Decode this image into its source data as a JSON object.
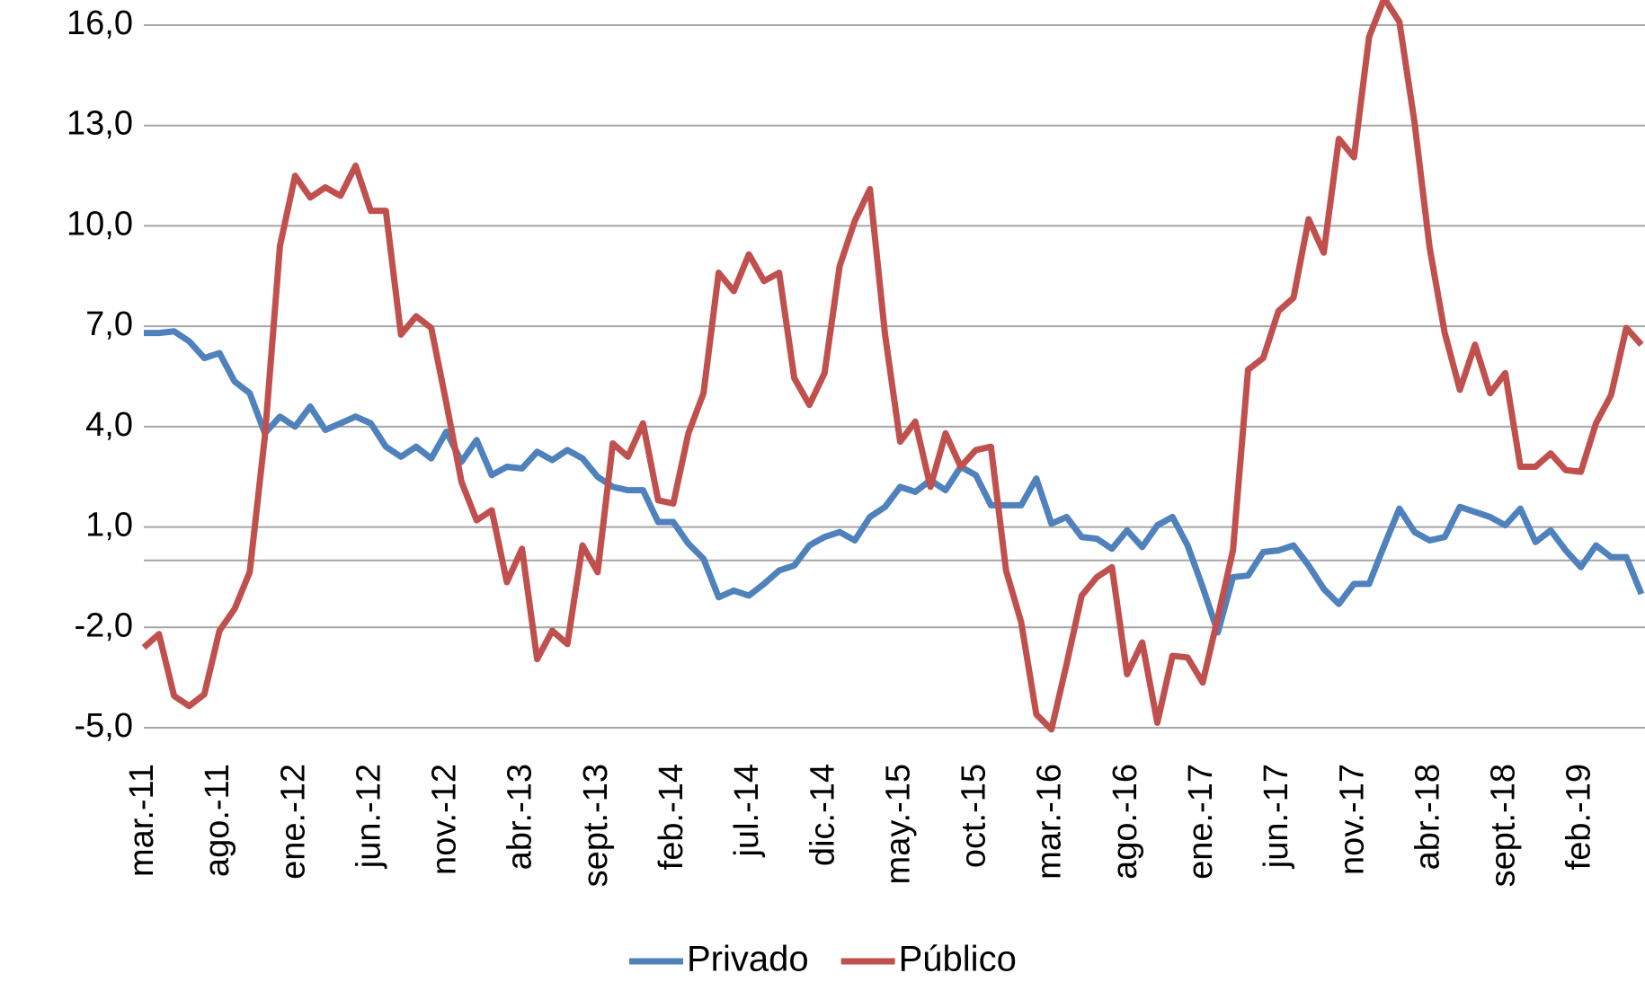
{
  "chart_data": {
    "type": "line",
    "categories": [
      "mar.-11",
      null,
      null,
      null,
      null,
      "ago.-11",
      null,
      null,
      null,
      null,
      "ene.-12",
      null,
      null,
      null,
      null,
      "jun.-12",
      null,
      null,
      null,
      null,
      "nov.-12",
      null,
      null,
      null,
      null,
      "abr.-13",
      null,
      null,
      null,
      null,
      "sept.-13",
      null,
      null,
      null,
      null,
      "feb.-14",
      null,
      null,
      null,
      null,
      "jul.-14",
      null,
      null,
      null,
      null,
      "dic.-14",
      null,
      null,
      null,
      null,
      "may.-15",
      null,
      null,
      null,
      null,
      "oct.-15",
      null,
      null,
      null,
      null,
      "mar.-16",
      null,
      null,
      null,
      null,
      "ago.-16",
      null,
      null,
      null,
      null,
      "ene.-17",
      null,
      null,
      null,
      null,
      "jun.-17",
      null,
      null,
      null,
      null,
      "nov.-17",
      null,
      null,
      null,
      null,
      "abr.-18",
      null,
      null,
      null,
      null,
      "sept.-18",
      null,
      null,
      null,
      null,
      "feb.-19",
      null,
      null,
      null,
      null
    ],
    "series": [
      {
        "name": "Privado",
        "color": "#4f81bd",
        "values": [
          6.8,
          6.8,
          6.85,
          6.55,
          6.05,
          6.2,
          5.35,
          5.0,
          3.8,
          4.3,
          4.0,
          4.6,
          3.9,
          4.1,
          4.3,
          4.1,
          3.4,
          3.1,
          3.4,
          3.05,
          3.85,
          2.95,
          3.6,
          2.55,
          2.8,
          2.75,
          3.25,
          3.0,
          3.3,
          3.05,
          2.5,
          2.2,
          2.1,
          2.1,
          1.15,
          1.15,
          0.5,
          0.05,
          -1.1,
          -0.9,
          -1.05,
          -0.7,
          -0.3,
          -0.15,
          0.45,
          0.7,
          0.85,
          0.6,
          1.3,
          1.6,
          2.2,
          2.05,
          2.4,
          2.1,
          2.8,
          2.55,
          1.65,
          1.65,
          1.65,
          2.45,
          1.1,
          1.3,
          0.7,
          0.65,
          0.35,
          0.9,
          0.4,
          1.05,
          1.3,
          0.45,
          -0.8,
          -2.15,
          -0.5,
          -0.45,
          0.25,
          0.3,
          0.45,
          -0.15,
          -0.85,
          -1.3,
          -0.7,
          -0.7,
          0.45,
          1.55,
          0.85,
          0.6,
          0.7,
          1.6,
          1.45,
          1.3,
          1.05,
          1.55,
          0.55,
          0.9,
          0.3,
          -0.2,
          0.45,
          0.1,
          0.1,
          -1.0
        ]
      },
      {
        "name": "Público",
        "color": "#c0504d",
        "values": [
          -2.6,
          -2.2,
          -4.05,
          -4.35,
          -4.0,
          -2.1,
          -1.45,
          -0.35,
          3.7,
          9.4,
          11.5,
          10.85,
          11.15,
          10.9,
          11.8,
          10.45,
          10.45,
          6.75,
          7.3,
          6.95,
          4.7,
          2.35,
          1.2,
          1.5,
          -0.65,
          0.35,
          -2.95,
          -2.1,
          -2.5,
          0.45,
          -0.35,
          3.5,
          3.1,
          4.1,
          1.8,
          1.7,
          3.8,
          5.0,
          8.6,
          8.05,
          9.15,
          8.35,
          8.6,
          5.45,
          4.65,
          5.6,
          8.8,
          10.15,
          11.1,
          6.75,
          3.55,
          4.15,
          2.2,
          3.8,
          2.8,
          3.3,
          3.4,
          -0.3,
          -1.85,
          -4.6,
          -5.05,
          -3.1,
          -1.05,
          -0.5,
          -0.2,
          -3.4,
          -2.45,
          -4.85,
          -2.85,
          -2.9,
          -3.65,
          -1.7,
          0.3,
          5.7,
          6.05,
          7.45,
          7.85,
          10.2,
          9.2,
          12.6,
          12.05,
          15.65,
          16.8,
          16.1,
          13.1,
          9.35,
          6.8,
          5.1,
          6.45,
          5.0,
          5.6,
          2.8,
          2.8,
          3.2,
          2.7,
          2.65,
          4.1,
          4.95,
          6.95,
          6.45
        ]
      }
    ],
    "ylim": [
      -5,
      16
    ],
    "yticks": [
      {
        "value": -5,
        "label": "-5,0"
      },
      {
        "value": -2,
        "label": "-2,0"
      },
      {
        "value": 1,
        "label": "1,0"
      },
      {
        "value": 4,
        "label": "4,0"
      },
      {
        "value": 7,
        "label": "7,0"
      },
      {
        "value": 10,
        "label": "10,0"
      },
      {
        "value": 13,
        "label": "13,0"
      },
      {
        "value": 16,
        "label": "16,0"
      }
    ],
    "negative_tick_label_color": "#ff0000",
    "grid": true,
    "legend": "bottom"
  }
}
